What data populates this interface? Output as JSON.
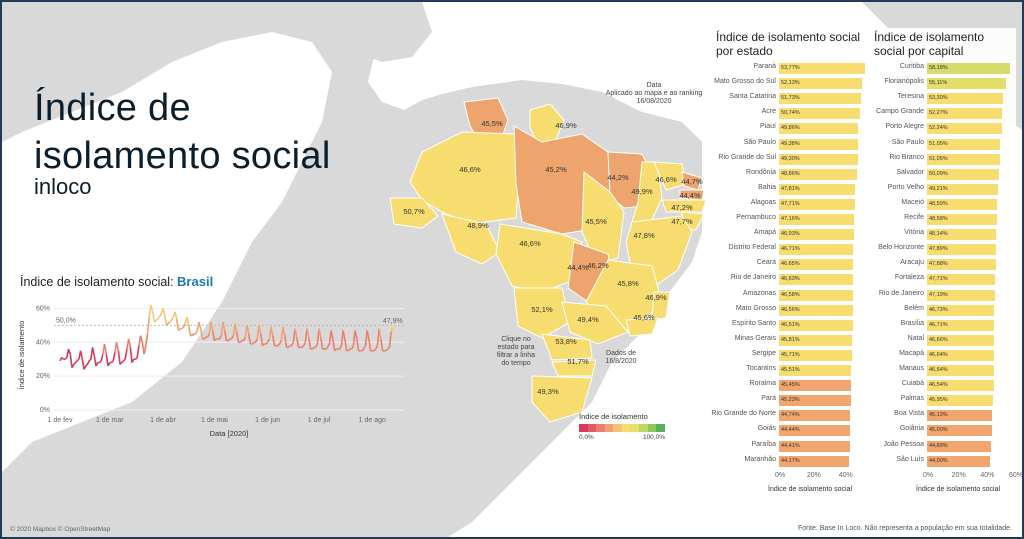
{
  "page": {
    "title": "Índice de isolamento social",
    "subtitle": "inloco"
  },
  "line_panel": {
    "title_prefix": "Índice de isolamento social:",
    "title_region": "Brasil",
    "ylabel": "Índice de isolamento",
    "xlabel": "Data [2020]",
    "ref_label": "50,0%",
    "last_label": "47,9%",
    "y_ticks": [
      "0%",
      "20%",
      "40%",
      "60%"
    ],
    "x_ticks": [
      "1 de fev",
      "1 de mar",
      "1 de abr",
      "1 de mai",
      "1 de jun",
      "1 de jul",
      "1 de ago"
    ]
  },
  "chart_data": {
    "type": "line",
    "title": "Índice de isolamento social: Brasil",
    "xlabel": "Data [2020]",
    "ylabel": "Índice de isolamento",
    "ylim": [
      0,
      65
    ],
    "x_range": [
      "2020-02-01",
      "2020-08-16"
    ],
    "reference_line": 50.0,
    "series": [
      {
        "x_start": "2020-02-01",
        "step_days": 1,
        "values": [
          29,
          31,
          30,
          30,
          31,
          36,
          33,
          25,
          27,
          28,
          29,
          30,
          35,
          30,
          24,
          26,
          27,
          29,
          30,
          37,
          32,
          26,
          28,
          28,
          29,
          33,
          39,
          33,
          26,
          28,
          28,
          29,
          34,
          40,
          35,
          27,
          28,
          29,
          30,
          36,
          42,
          37,
          28,
          30,
          30,
          31,
          38,
          44,
          40,
          33,
          38,
          45,
          55,
          62,
          58,
          52,
          53,
          54,
          55,
          57,
          60,
          56,
          50,
          51,
          52,
          53,
          55,
          58,
          54,
          47,
          48,
          48,
          49,
          51,
          55,
          50,
          44,
          44,
          45,
          45,
          47,
          52,
          48,
          42,
          42,
          43,
          43,
          45,
          52,
          47,
          41,
          42,
          42,
          42,
          44,
          52,
          47,
          41,
          41,
          42,
          42,
          44,
          51,
          46,
          40,
          40,
          41,
          41,
          43,
          50,
          45,
          39,
          39,
          40,
          40,
          42,
          50,
          45,
          38,
          39,
          39,
          40,
          42,
          49,
          44,
          38,
          38,
          38,
          39,
          41,
          49,
          44,
          37,
          37,
          38,
          38,
          40,
          48,
          43,
          37,
          37,
          37,
          38,
          40,
          48,
          43,
          36,
          36,
          37,
          37,
          39,
          48,
          43,
          36,
          36,
          36,
          37,
          39,
          47,
          42,
          35,
          36,
          36,
          36,
          38,
          47,
          42,
          35,
          35,
          36,
          36,
          38,
          47,
          42,
          35,
          35,
          35,
          36,
          38,
          47,
          42,
          35,
          35,
          35,
          36,
          38,
          48,
          42,
          35,
          35,
          35,
          36,
          37,
          46,
          47.9
        ]
      }
    ]
  },
  "map": {
    "legend_title": "Índice de isolamento",
    "legend_min": "0,0%",
    "legend_max": "100,0%",
    "legend_colors": [
      "#d9395a",
      "#e35a63",
      "#ec7f6b",
      "#f1a274",
      "#f5c47a",
      "#f7dc6f",
      "#e6e06a",
      "#bcd85f",
      "#8ec85a",
      "#58b25a"
    ],
    "date_label": "Data",
    "date_note": "Aplicado ao mapa e ao ranking",
    "date_value": "16/08/2020",
    "click_note": [
      "Clique no",
      "estado para",
      "filtrar a linha",
      "do tempo"
    ],
    "data_note": [
      "Dados de",
      "16/8/2020"
    ],
    "state_labels": [
      "45,5%",
      "46,9%",
      "46,6%",
      "45,2%",
      "44,2%",
      "46,6%",
      "44,7%",
      "44,4%",
      "49,9%",
      "47,2%",
      "50,7%",
      "48,9%",
      "45,5%",
      "47,7%",
      "46,6%",
      "47,8%",
      "44,4%",
      "46,2%",
      "45,8%",
      "52,1%",
      "46,9%",
      "49,4%",
      "45,6%",
      "53,8%",
      "51,7%",
      "49,3%"
    ],
    "copyright": "© 2020 Mapbox © OpenStreetMap"
  },
  "rank_states": {
    "title": "Índice de isolamento social por estado",
    "axis_ticks": [
      "0%",
      "20%",
      "40%"
    ],
    "axis_title": "Índice de isolamento social",
    "rows": [
      {
        "name": "Paraná",
        "value": "53,77%",
        "pct": 53.77,
        "color": "#f7dc6f"
      },
      {
        "name": "Mato Grosso do Sul",
        "value": "52,13%",
        "pct": 52.13,
        "color": "#f7dc6f"
      },
      {
        "name": "Santa Catarina",
        "value": "51,73%",
        "pct": 51.73,
        "color": "#f7dc6f"
      },
      {
        "name": "Acre",
        "value": "50,74%",
        "pct": 50.74,
        "color": "#f7dc6f"
      },
      {
        "name": "Piauí",
        "value": "49,86%",
        "pct": 49.86,
        "color": "#f7dc6f"
      },
      {
        "name": "São Paulo",
        "value": "49,38%",
        "pct": 49.38,
        "color": "#f7dc6f"
      },
      {
        "name": "Rio Grande do Sul",
        "value": "49,30%",
        "pct": 49.3,
        "color": "#f7dc6f"
      },
      {
        "name": "Rondônia",
        "value": "48,86%",
        "pct": 48.86,
        "color": "#f7dc6f"
      },
      {
        "name": "Bahia",
        "value": "47,81%",
        "pct": 47.81,
        "color": "#f7dc6f"
      },
      {
        "name": "Alagoas",
        "value": "47,71%",
        "pct": 47.71,
        "color": "#f7dc6f"
      },
      {
        "name": "Pernambuco",
        "value": "47,16%",
        "pct": 47.16,
        "color": "#f7dc6f"
      },
      {
        "name": "Amapá",
        "value": "46,93%",
        "pct": 46.93,
        "color": "#f7dc6f"
      },
      {
        "name": "Distrito Federal",
        "value": "46,71%",
        "pct": 46.71,
        "color": "#f7dc6f"
      },
      {
        "name": "Ceará",
        "value": "46,65%",
        "pct": 46.65,
        "color": "#f7dc6f"
      },
      {
        "name": "Rio de Janeiro",
        "value": "46,63%",
        "pct": 46.63,
        "color": "#f7dc6f"
      },
      {
        "name": "Amazonas",
        "value": "46,58%",
        "pct": 46.58,
        "color": "#f7dc6f"
      },
      {
        "name": "Mato Grosso",
        "value": "46,56%",
        "pct": 46.56,
        "color": "#f7dc6f"
      },
      {
        "name": "Espírito Santo",
        "value": "46,51%",
        "pct": 46.51,
        "color": "#f7dc6f"
      },
      {
        "name": "Minas Gerais",
        "value": "45,81%",
        "pct": 45.81,
        "color": "#f7dc6f"
      },
      {
        "name": "Sergipe",
        "value": "45,71%",
        "pct": 45.71,
        "color": "#f7dc6f"
      },
      {
        "name": "Tocantins",
        "value": "45,51%",
        "pct": 45.51,
        "color": "#f7dc6f"
      },
      {
        "name": "Roraima",
        "value": "45,45%",
        "pct": 45.45,
        "color": "#f2a56c"
      },
      {
        "name": "Pará",
        "value": "45,23%",
        "pct": 45.23,
        "color": "#f2a56c"
      },
      {
        "name": "Rio Grande do Norte",
        "value": "44,74%",
        "pct": 44.74,
        "color": "#f2a56c"
      },
      {
        "name": "Goiás",
        "value": "44,44%",
        "pct": 44.44,
        "color": "#f2a56c"
      },
      {
        "name": "Paraíba",
        "value": "44,41%",
        "pct": 44.41,
        "color": "#f2a56c"
      },
      {
        "name": "Maranhão",
        "value": "44,17%",
        "pct": 44.17,
        "color": "#f2a56c"
      }
    ]
  },
  "rank_capitals": {
    "title": "Índice de isolamento social por capital",
    "axis_ticks": [
      "0%",
      "20%",
      "40%",
      "60%"
    ],
    "axis_title": "Índice de isolamento social",
    "rows": [
      {
        "name": "Curitiba",
        "value": "58,18%",
        "pct": 58.18,
        "color": "#d6dc6a"
      },
      {
        "name": "Florianópolis",
        "value": "55,11%",
        "pct": 55.11,
        "color": "#e3df6a"
      },
      {
        "name": "Teresina",
        "value": "53,30%",
        "pct": 53.3,
        "color": "#f7dc6f"
      },
      {
        "name": "Campo Grande",
        "value": "52,27%",
        "pct": 52.27,
        "color": "#f7dc6f"
      },
      {
        "name": "Porto Alegre",
        "value": "52,24%",
        "pct": 52.24,
        "color": "#f7dc6f"
      },
      {
        "name": "São Paulo",
        "value": "51,05%",
        "pct": 51.05,
        "color": "#f7dc6f"
      },
      {
        "name": "Rio Branco",
        "value": "51,05%",
        "pct": 51.05,
        "color": "#f7dc6f"
      },
      {
        "name": "Salvador",
        "value": "50,09%",
        "pct": 50.09,
        "color": "#f7dc6f"
      },
      {
        "name": "Porto Velho",
        "value": "49,21%",
        "pct": 49.21,
        "color": "#f7dc6f"
      },
      {
        "name": "Maceió",
        "value": "48,59%",
        "pct": 48.59,
        "color": "#f7dc6f"
      },
      {
        "name": "Recife",
        "value": "48,58%",
        "pct": 48.58,
        "color": "#f7dc6f"
      },
      {
        "name": "Vitória",
        "value": "48,14%",
        "pct": 48.14,
        "color": "#f7dc6f"
      },
      {
        "name": "Belo Horizonte",
        "value": "47,89%",
        "pct": 47.89,
        "color": "#f7dc6f"
      },
      {
        "name": "Aracaju",
        "value": "47,88%",
        "pct": 47.88,
        "color": "#f7dc6f"
      },
      {
        "name": "Fortaleza",
        "value": "47,71%",
        "pct": 47.71,
        "color": "#f7dc6f"
      },
      {
        "name": "Rio de Janeiro",
        "value": "47,19%",
        "pct": 47.19,
        "color": "#f7dc6f"
      },
      {
        "name": "Belém",
        "value": "46,73%",
        "pct": 46.73,
        "color": "#f7dc6f"
      },
      {
        "name": "Brasília",
        "value": "46,71%",
        "pct": 46.71,
        "color": "#f7dc6f"
      },
      {
        "name": "Natal",
        "value": "46,66%",
        "pct": 46.66,
        "color": "#f7dc6f"
      },
      {
        "name": "Macapá",
        "value": "46,64%",
        "pct": 46.64,
        "color": "#f7dc6f"
      },
      {
        "name": "Manaus",
        "value": "46,64%",
        "pct": 46.64,
        "color": "#f7dc6f"
      },
      {
        "name": "Cuiabá",
        "value": "46,54%",
        "pct": 46.54,
        "color": "#f7dc6f"
      },
      {
        "name": "Palmas",
        "value": "45,95%",
        "pct": 45.95,
        "color": "#f7dc6f"
      },
      {
        "name": "Boa Vista",
        "value": "45,13%",
        "pct": 45.13,
        "color": "#f2a56c"
      },
      {
        "name": "Goiânia",
        "value": "45,00%",
        "pct": 45.0,
        "color": "#f2a56c"
      },
      {
        "name": "João Pessoa",
        "value": "44,89%",
        "pct": 44.89,
        "color": "#f2a56c"
      },
      {
        "name": "São Luís",
        "value": "44,00%",
        "pct": 44.0,
        "color": "#f2a56c"
      }
    ]
  },
  "footer": {
    "source": "Fonte: Base In Loco. Não representa a população em sua totalidade."
  }
}
